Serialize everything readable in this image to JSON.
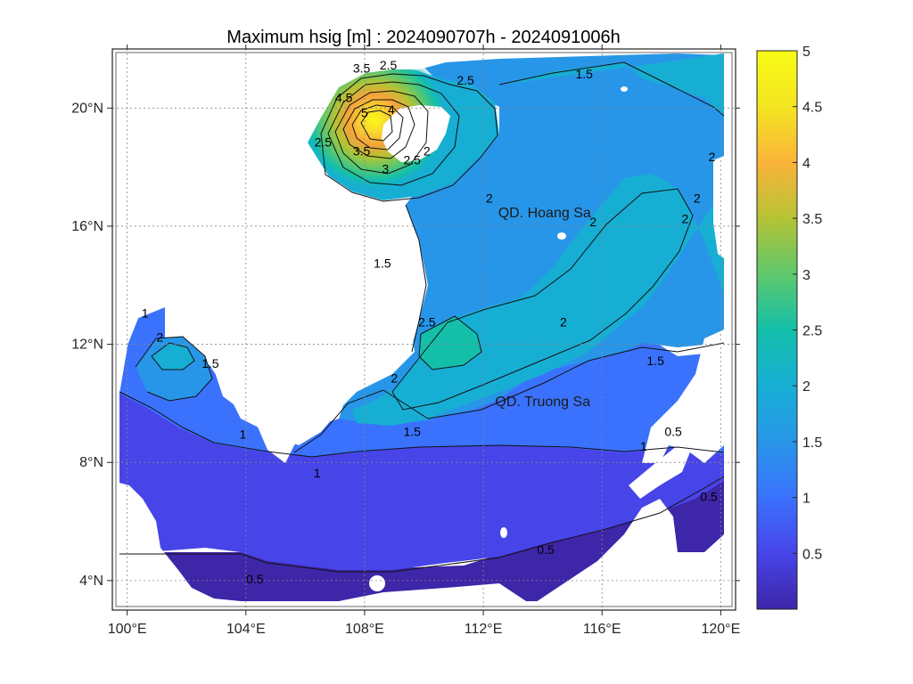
{
  "chart_data": {
    "type": "heatmap",
    "title": "Maximum hsig [m] : 2024090707h - 2024091006h",
    "xlabel": "",
    "ylabel": "",
    "xlim": [
      99.5,
      120.5
    ],
    "ylim": [
      3,
      22
    ],
    "x_ticks": [
      {
        "value": 100,
        "label": "100°E"
      },
      {
        "value": 104,
        "label": "104°E"
      },
      {
        "value": 108,
        "label": "108°E"
      },
      {
        "value": 112,
        "label": "112°E"
      },
      {
        "value": 116,
        "label": "116°E"
      },
      {
        "value": 120,
        "label": "120°E"
      }
    ],
    "y_ticks": [
      {
        "value": 4,
        "label": "4°N"
      },
      {
        "value": 8,
        "label": "8°N"
      },
      {
        "value": 12,
        "label": "12°N"
      },
      {
        "value": 16,
        "label": "16°N"
      },
      {
        "value": 20,
        "label": "20°N"
      }
    ],
    "grid": true,
    "colorbar": {
      "min": 0,
      "max": 5,
      "ticks": [
        {
          "value": 0.5,
          "label": "0.5"
        },
        {
          "value": 1,
          "label": "1"
        },
        {
          "value": 1.5,
          "label": "1.5"
        },
        {
          "value": 2,
          "label": "2"
        },
        {
          "value": 2.5,
          "label": "2.5"
        },
        {
          "value": 3,
          "label": "3"
        },
        {
          "value": 3.5,
          "label": "3.5"
        },
        {
          "value": 4,
          "label": "4"
        },
        {
          "value": 4.5,
          "label": "4.5"
        },
        {
          "value": 5,
          "label": "5"
        }
      ]
    },
    "colormap": [
      "#3e26a8",
      "#4744e8",
      "#3a72fd",
      "#2896e8",
      "#17aed4",
      "#14bfaa",
      "#5ec86c",
      "#b5c335",
      "#fbb43a",
      "#f3e521",
      "#f9fb15"
    ],
    "contour_levels": [
      0.5,
      1,
      1.5,
      2,
      2.5,
      3,
      3.5,
      4,
      4.5,
      5
    ],
    "contour_labels": [
      {
        "text": "5",
        "lon": 108.0,
        "lat": 19.7
      },
      {
        "text": "4.5",
        "lon": 107.3,
        "lat": 20.2
      },
      {
        "text": "4",
        "lon": 108.9,
        "lat": 19.8
      },
      {
        "text": "3.5",
        "lon": 107.9,
        "lat": 21.2
      },
      {
        "text": "3.5",
        "lon": 107.9,
        "lat": 18.4
      },
      {
        "text": "3",
        "lon": 108.7,
        "lat": 17.8
      },
      {
        "text": "2.5",
        "lon": 106.6,
        "lat": 18.7
      },
      {
        "text": "2.5",
        "lon": 108.8,
        "lat": 21.3
      },
      {
        "text": "2.5",
        "lon": 111.4,
        "lat": 20.8
      },
      {
        "text": "2.5",
        "lon": 109.6,
        "lat": 18.1
      },
      {
        "text": "2.5",
        "lon": 110.1,
        "lat": 12.6
      },
      {
        "text": "2",
        "lon": 110.1,
        "lat": 18.4
      },
      {
        "text": "2",
        "lon": 112.2,
        "lat": 16.8
      },
      {
        "text": "2",
        "lon": 115.7,
        "lat": 16.0
      },
      {
        "text": "2",
        "lon": 114.7,
        "lat": 12.6
      },
      {
        "text": "2",
        "lon": 109.0,
        "lat": 10.7
      },
      {
        "text": "2",
        "lon": 118.8,
        "lat": 16.1
      },
      {
        "text": "2",
        "lon": 119.2,
        "lat": 16.8
      },
      {
        "text": "2",
        "lon": 119.7,
        "lat": 18.2
      },
      {
        "text": "2",
        "lon": 101.1,
        "lat": 12.1
      },
      {
        "text": "1.5",
        "lon": 115.4,
        "lat": 21.0
      },
      {
        "text": "1.5",
        "lon": 108.6,
        "lat": 14.6
      },
      {
        "text": "1.5",
        "lon": 117.8,
        "lat": 11.3
      },
      {
        "text": "1.5",
        "lon": 109.6,
        "lat": 8.9
      },
      {
        "text": "1.5",
        "lon": 102.8,
        "lat": 11.2
      },
      {
        "text": "1",
        "lon": 103.9,
        "lat": 8.8
      },
      {
        "text": "1",
        "lon": 106.4,
        "lat": 7.5
      },
      {
        "text": "1",
        "lon": 117.4,
        "lat": 8.4
      },
      {
        "text": "1",
        "lon": 100.6,
        "lat": 12.9
      },
      {
        "text": "0.5",
        "lon": 104.3,
        "lat": 3.9
      },
      {
        "text": "0.5",
        "lon": 114.1,
        "lat": 4.9
      },
      {
        "text": "0.5",
        "lon": 118.4,
        "lat": 8.9
      },
      {
        "text": "0.5",
        "lon": 119.6,
        "lat": 6.7
      }
    ],
    "place_labels": [
      {
        "text": "QD. Hoang Sa",
        "lon": 112.5,
        "lat": 16.3
      },
      {
        "text": "QD. Truong Sa",
        "lon": 112.4,
        "lat": 9.9
      }
    ]
  }
}
